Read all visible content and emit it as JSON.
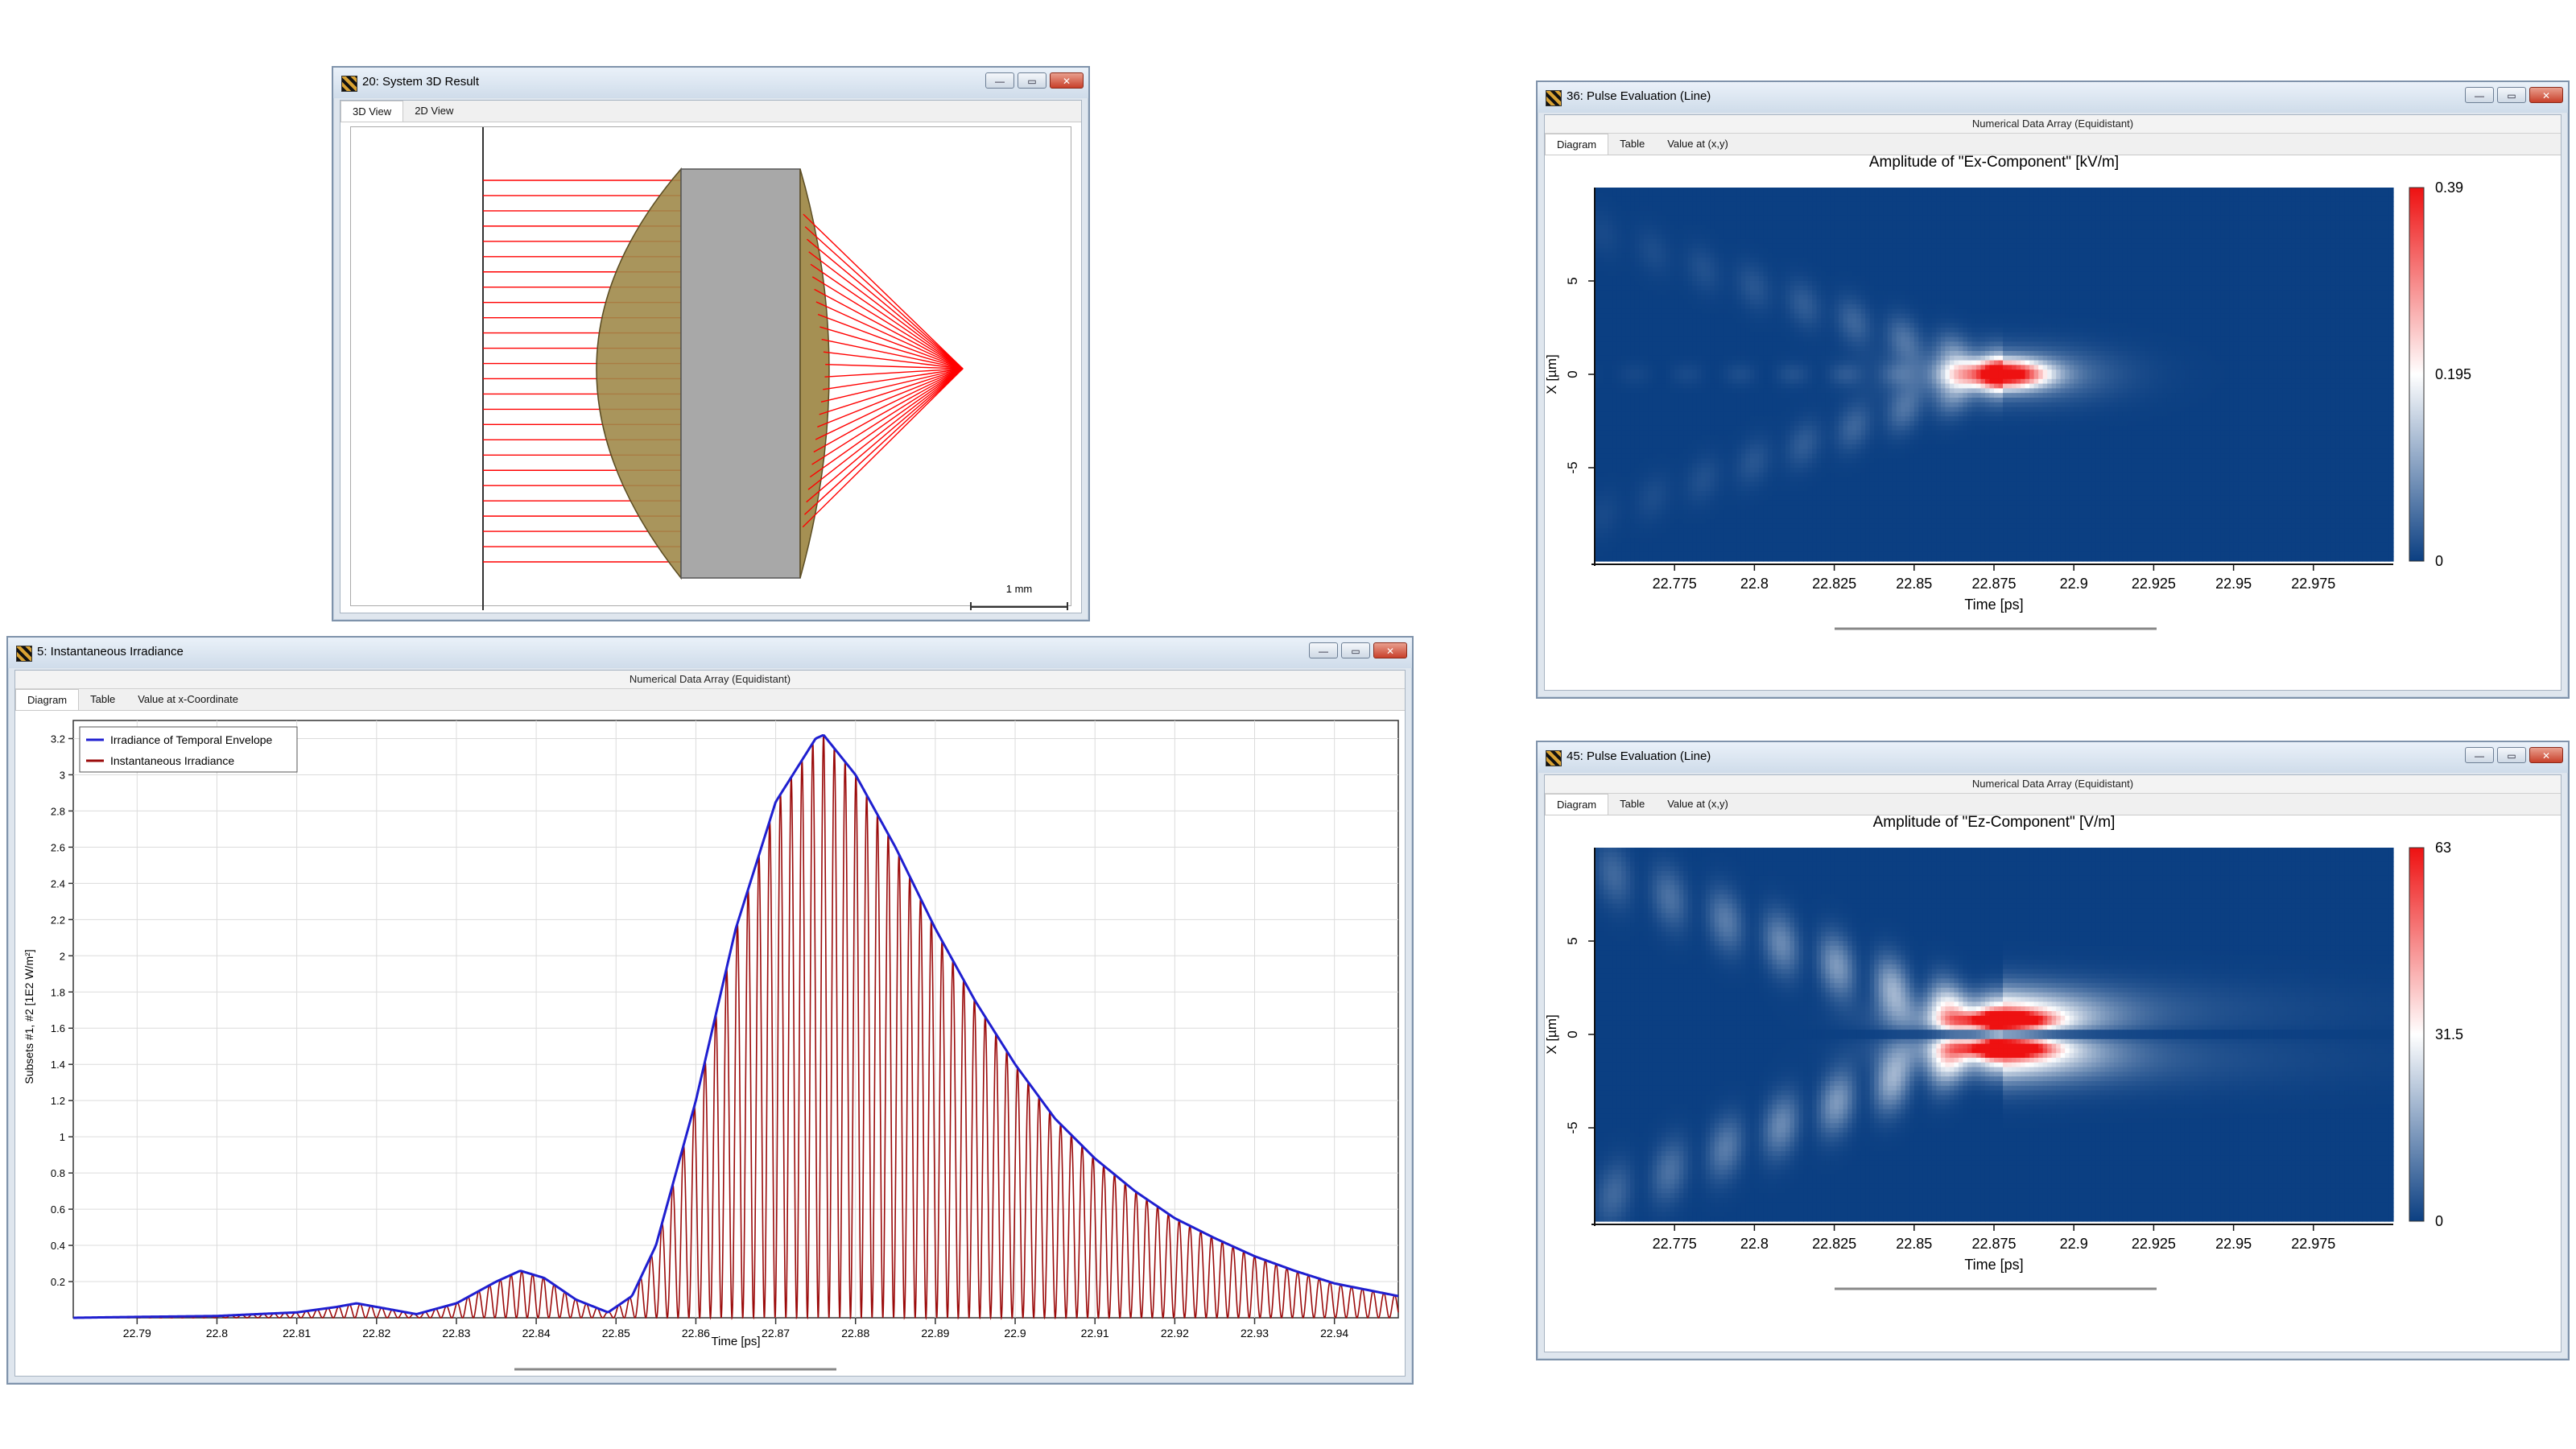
{
  "windows": {
    "system3d": {
      "title": "20: System 3D Result",
      "tabs": [
        "3D View",
        "2D View"
      ],
      "scale_bar": "1 mm"
    },
    "irradiance": {
      "title": "5: Instantaneous Irradiance",
      "subtitle": "Numerical Data Array (Equidistant)",
      "tabs": [
        "Diagram",
        "Table",
        "Value at x-Coordinate"
      ]
    },
    "pulse_ex": {
      "title": "36: Pulse Evaluation (Line)",
      "subtitle": "Numerical Data Array (Equidistant)",
      "tabs": [
        "Diagram",
        "Table",
        "Value at (x,y)"
      ]
    },
    "pulse_ez": {
      "title": "45: Pulse Evaluation (Line)",
      "subtitle": "Numerical Data Array (Equidistant)",
      "tabs": [
        "Diagram",
        "Table",
        "Value at (x,y)"
      ]
    }
  },
  "window_buttons": {
    "minimize": "—",
    "restore": "▭",
    "close": "✕"
  },
  "colors": {
    "envelope": "#1f1fd0",
    "instantaneous": "#9b0b0b",
    "ray": "#ff0000",
    "lens": "#a08a4a",
    "glass": "#a8a8a8",
    "cmap_low": "#0b3f82",
    "cmap_mid": "#ffffff",
    "cmap_high": "#ee1111"
  },
  "chart_data": [
    {
      "type": "line",
      "xlabel": "Time [ps]",
      "ylabel": "Subsets #1, #2 [1E2 W/m²]",
      "xlim": [
        22.782,
        22.948
      ],
      "ylim": [
        0,
        3.3
      ],
      "x_ticks": [
        "22.79",
        "22.8",
        "22.81",
        "22.82",
        "22.83",
        "22.84",
        "22.85",
        "22.86",
        "22.87",
        "22.88",
        "22.89",
        "22.9",
        "22.91",
        "22.92",
        "22.93",
        "22.94"
      ],
      "y_ticks": [
        "0.2",
        "0.4",
        "0.6",
        "0.8",
        "1",
        "1.2",
        "1.4",
        "1.6",
        "1.8",
        "2",
        "2.2",
        "2.4",
        "2.6",
        "2.8",
        "3",
        "3.2"
      ],
      "grid": true,
      "legend": "top-left",
      "series": [
        {
          "name": "Irradiance of Temporal Envelope",
          "x": [
            22.782,
            22.79,
            22.8,
            22.81,
            22.815,
            22.8175,
            22.82,
            22.825,
            22.83,
            22.835,
            22.838,
            22.841,
            22.845,
            22.849,
            22.852,
            22.855,
            22.86,
            22.865,
            22.87,
            22.875,
            22.876,
            22.88,
            22.885,
            22.89,
            22.895,
            22.9,
            22.905,
            22.91,
            22.915,
            22.92,
            22.925,
            22.93,
            22.935,
            22.94,
            22.948
          ],
          "values": [
            0.0,
            0.005,
            0.01,
            0.03,
            0.06,
            0.08,
            0.06,
            0.02,
            0.08,
            0.2,
            0.26,
            0.22,
            0.1,
            0.03,
            0.12,
            0.4,
            1.2,
            2.15,
            2.85,
            3.2,
            3.22,
            3.0,
            2.6,
            2.15,
            1.75,
            1.4,
            1.1,
            0.88,
            0.7,
            0.55,
            0.44,
            0.34,
            0.26,
            0.19,
            0.12
          ]
        },
        {
          "name": "Instantaneous Irradiance",
          "carrier_period_ps": 0.00135
        }
      ]
    },
    {
      "type": "heatmap",
      "title": "Amplitude of \"Ex-Component\"  [kV/m]",
      "xlabel": "Time [ps]",
      "ylabel": "X [µm]",
      "xlim": [
        22.75,
        23.0
      ],
      "ylim": [
        -10,
        10
      ],
      "x_ticks": [
        "22.775",
        "22.8",
        "22.825",
        "22.85",
        "22.875",
        "22.9",
        "22.925",
        "22.95",
        "22.975"
      ],
      "y_ticks": [
        "5",
        "0",
        "-5"
      ],
      "colorbar_ticks": [
        "0.39",
        "0.195",
        "0"
      ],
      "vmax": 0.39,
      "peak": {
        "t": 22.875,
        "x": 0.0
      }
    },
    {
      "type": "heatmap",
      "title": "Amplitude of \"Ez-Component\"  [V/m]",
      "xlabel": "Time [ps]",
      "ylabel": "X [µm]",
      "xlim": [
        22.75,
        23.0
      ],
      "ylim": [
        -10,
        10
      ],
      "x_ticks": [
        "22.775",
        "22.8",
        "22.825",
        "22.85",
        "22.875",
        "22.9",
        "22.925",
        "22.95",
        "22.975"
      ],
      "y_ticks": [
        "5",
        "0",
        "-5"
      ],
      "colorbar_ticks": [
        "63",
        "31.5",
        "0"
      ],
      "vmax": 63,
      "peaks": [
        {
          "t": 22.875,
          "x": 0.7
        },
        {
          "t": 22.875,
          "x": -0.7
        }
      ]
    }
  ]
}
